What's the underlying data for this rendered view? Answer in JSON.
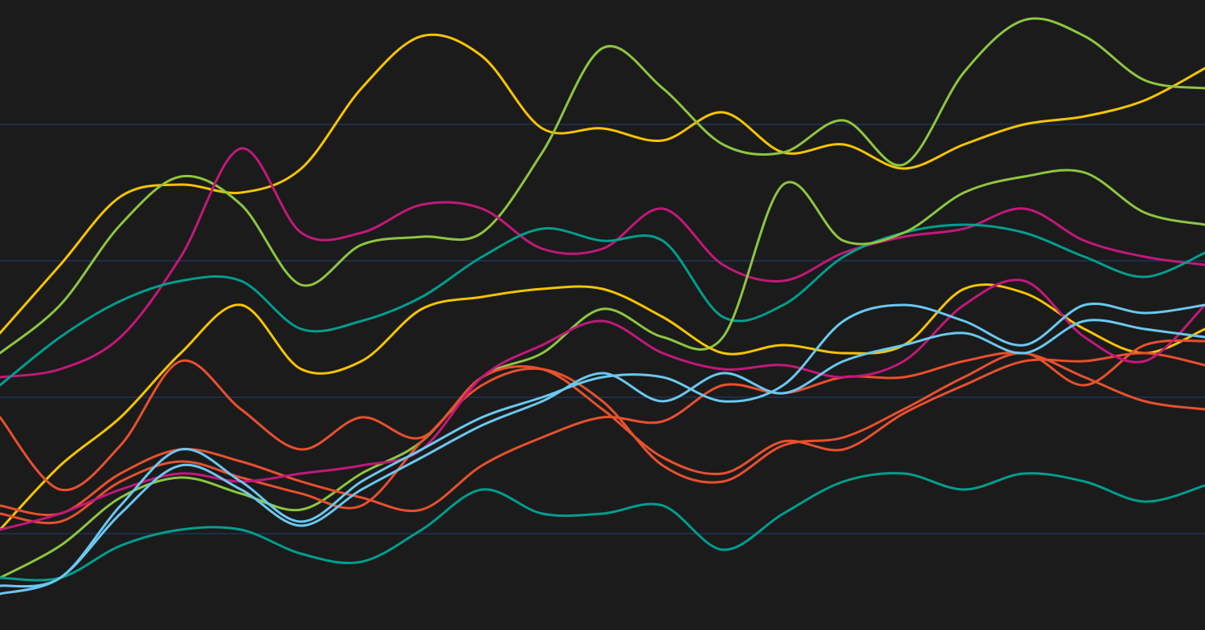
{
  "chart_data": {
    "type": "line",
    "x": [
      0,
      1,
      2,
      3,
      4,
      5,
      6,
      7,
      8,
      9,
      10,
      11,
      12,
      13,
      14,
      15,
      16,
      17,
      18,
      19,
      20
    ],
    "xlim": [
      0,
      20
    ],
    "ylim": [
      0,
      785
    ],
    "yticks": [
      120,
      290,
      460,
      630
    ],
    "grid": true,
    "grid_color": "#1f3556",
    "background": "#1b1b1b",
    "series": [
      {
        "color": "#f5c400",
        "values": [
          370,
          455,
          540,
          555,
          545,
          575,
          675,
          740,
          715,
          625,
          625,
          610,
          645,
          595,
          605,
          575,
          605,
          630,
          640,
          660,
          700
        ]
      },
      {
        "color": "#8dc63f",
        "values": [
          345,
          405,
          505,
          565,
          530,
          430,
          480,
          490,
          495,
          595,
          725,
          675,
          605,
          595,
          635,
          580,
          695,
          760,
          740,
          685,
          675
        ]
      },
      {
        "color": "#c2187a",
        "values": [
          315,
          325,
          365,
          465,
          600,
          495,
          495,
          530,
          525,
          475,
          475,
          525,
          455,
          435,
          470,
          490,
          500,
          525,
          485,
          465,
          455
        ]
      },
      {
        "color": "#009e8e",
        "values": [
          305,
          365,
          410,
          435,
          435,
          375,
          385,
          415,
          465,
          500,
          485,
          485,
          390,
          405,
          465,
          495,
          505,
          495,
          465,
          440,
          470
        ]
      },
      {
        "color": "#8dc63f",
        "values": [
          65,
          105,
          165,
          190,
          170,
          150,
          195,
          235,
          315,
          345,
          400,
          365,
          365,
          555,
          485,
          495,
          545,
          565,
          570,
          520,
          505
        ]
      },
      {
        "color": "#f5c400",
        "values": [
          125,
          205,
          265,
          345,
          405,
          325,
          335,
          400,
          415,
          425,
          425,
          390,
          345,
          355,
          345,
          355,
          425,
          420,
          375,
          345,
          375
        ]
      },
      {
        "color": "#e8502e",
        "values": [
          265,
          175,
          230,
          335,
          275,
          225,
          265,
          240,
          315,
          325,
          275,
          215,
          195,
          235,
          225,
          270,
          305,
          335,
          335,
          345,
          330
        ]
      },
      {
        "color": "#e8502e",
        "values": [
          155,
          145,
          195,
          225,
          210,
          185,
          165,
          150,
          205,
          240,
          265,
          260,
          305,
          295,
          315,
          315,
          335,
          345,
          315,
          285,
          275
        ]
      },
      {
        "color": "#e8502e",
        "values": [
          145,
          135,
          185,
          210,
          190,
          170,
          155,
          235,
          305,
          325,
          285,
          205,
          185,
          230,
          240,
          275,
          315,
          345,
          305,
          355,
          360
        ]
      },
      {
        "color": "#c2187a",
        "values": [
          125,
          145,
          175,
          195,
          185,
          195,
          205,
          225,
          315,
          355,
          385,
          345,
          325,
          330,
          315,
          335,
          405,
          435,
          365,
          335,
          405
        ]
      },
      {
        "color": "#009e8e",
        "values": [
          65,
          65,
          105,
          125,
          125,
          95,
          85,
          125,
          175,
          145,
          145,
          155,
          100,
          145,
          185,
          195,
          175,
          195,
          185,
          160,
          180
        ]
      },
      {
        "color": "#6ac8f0",
        "values": [
          55,
          65,
          155,
          225,
          185,
          135,
          185,
          225,
          265,
          290,
          315,
          315,
          285,
          305,
          385,
          405,
          385,
          355,
          405,
          395,
          405
        ]
      },
      {
        "color": "#6ac8f0",
        "values": [
          45,
          65,
          145,
          205,
          175,
          130,
          175,
          215,
          255,
          285,
          320,
          285,
          320,
          295,
          335,
          355,
          370,
          345,
          385,
          375,
          365
        ]
      }
    ]
  }
}
